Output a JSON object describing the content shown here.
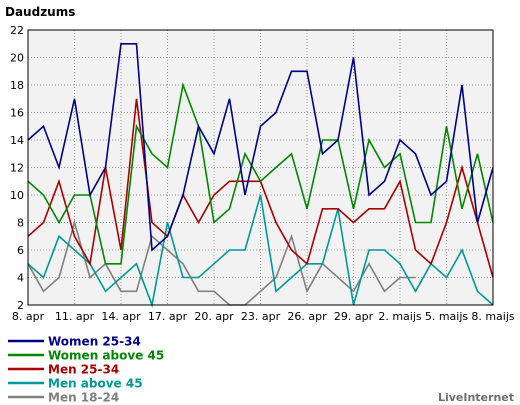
{
  "chart_data": {
    "type": "line",
    "title": "Daudzums",
    "ylim": [
      2,
      22
    ],
    "yticks": [
      2,
      4,
      6,
      8,
      10,
      12,
      14,
      16,
      18,
      20,
      22
    ],
    "grid": true,
    "legend_position": "bottom-left",
    "x_labels": [
      "8. apr",
      "11. apr",
      "14. apr",
      "17. apr",
      "20. apr",
      "23. apr",
      "26. apr",
      "29. apr",
      "2. maijs",
      "5. maijs",
      "8. maijs"
    ],
    "series": [
      {
        "name": "Women 25-34",
        "color": "#00008b",
        "values": [
          14,
          15,
          12,
          17,
          10,
          12,
          21,
          21,
          6,
          7,
          10,
          15,
          13,
          17,
          10,
          15,
          16,
          19,
          19,
          13,
          14,
          20,
          10,
          11,
          14,
          13,
          10,
          11,
          18,
          8,
          12
        ]
      },
      {
        "name": "Women above 45",
        "color": "#008800",
        "values": [
          11,
          10,
          8,
          10,
          10,
          5,
          5,
          15,
          13,
          12,
          18,
          15,
          8,
          9,
          13,
          11,
          12,
          13,
          9,
          14,
          14,
          9,
          14,
          12,
          13,
          8,
          8,
          15,
          9,
          13,
          8
        ]
      },
      {
        "name": "Men 25-34",
        "color": "#aa0000",
        "values": [
          7,
          8,
          11,
          7,
          5,
          12,
          6,
          17,
          8,
          7,
          10,
          8,
          10,
          11,
          11,
          11,
          8,
          6,
          5,
          9,
          9,
          8,
          9,
          9,
          11,
          6,
          5,
          8,
          12,
          8,
          4
        ]
      },
      {
        "name": "Men above 45",
        "color": "#009999",
        "values": [
          5,
          4,
          7,
          6,
          5,
          3,
          4,
          5,
          2,
          8,
          4,
          4,
          5,
          6,
          6,
          10,
          3,
          4,
          5,
          5,
          9,
          2,
          6,
          6,
          5,
          3,
          5,
          4,
          6,
          3,
          2
        ]
      },
      {
        "name": "Men 18-24",
        "color": "#808080",
        "values": [
          5,
          3,
          4,
          8,
          4,
          5,
          3,
          3,
          7,
          6,
          5,
          3,
          3,
          2,
          2,
          3,
          4,
          7,
          3,
          5,
          4,
          3,
          5,
          3,
          4,
          4,
          null,
          null,
          null,
          null,
          4
        ]
      }
    ]
  },
  "branding": {
    "text": "LiveInternet"
  }
}
